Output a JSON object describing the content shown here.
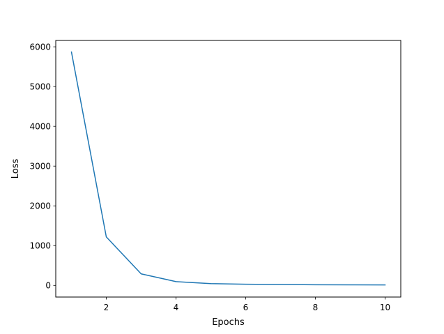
{
  "chart_data": {
    "type": "line",
    "title": "",
    "xlabel": "Epochs",
    "ylabel": "Loss",
    "xlim": [
      0.55,
      10.45
    ],
    "ylim": [
      -293,
      6160
    ],
    "x_ticks": [
      2,
      4,
      6,
      8,
      10
    ],
    "y_ticks": [
      0,
      1000,
      2000,
      3000,
      4000,
      5000,
      6000
    ],
    "grid": false,
    "legend": "none",
    "series": [
      {
        "color": "#1f77b4",
        "x": [
          1,
          2,
          3,
          4,
          5,
          6,
          7,
          8,
          9,
          10
        ],
        "y": [
          5870,
          1220,
          290,
          95,
          45,
          30,
          22,
          17,
          14,
          12
        ]
      }
    ]
  }
}
